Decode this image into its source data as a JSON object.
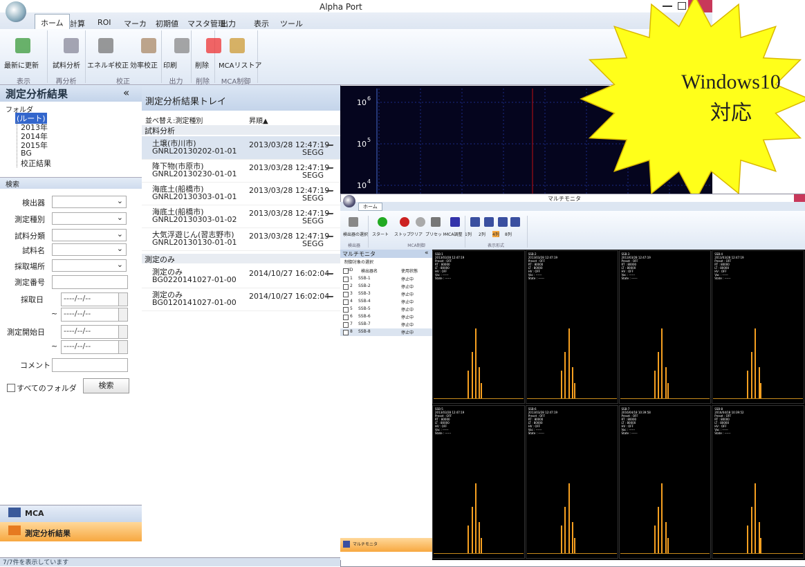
{
  "window": {
    "title": "Alpha Port"
  },
  "ribbon": {
    "tabs": [
      "ホーム",
      "計算",
      "ROI",
      "マーカ",
      "初期値",
      "マスタ管理",
      "出力",
      "表示",
      "ツール"
    ],
    "groups": [
      {
        "label": "表示",
        "buttons": [
          "最新に更新"
        ]
      },
      {
        "label": "再分析",
        "buttons": [
          "試料分析"
        ]
      },
      {
        "label": "校正",
        "buttons": [
          "エネルギ校正",
          "効率校正"
        ]
      },
      {
        "label": "出力",
        "buttons": [
          "印刷"
        ]
      },
      {
        "label": "削除",
        "buttons": [
          "削除"
        ]
      },
      {
        "label": "MCA制御",
        "buttons": [
          "MCAリストア"
        ]
      }
    ]
  },
  "left_panel": {
    "title": "測定分析結果",
    "collapse": "«",
    "folder_label": "フォルダ",
    "tree": [
      "(ルート)",
      "2013年",
      "2014年",
      "2015年",
      "BG",
      "校正結果"
    ],
    "search_title": "検索",
    "fields": [
      "検出器",
      "測定種別",
      "試料分類",
      "試料名",
      "採取場所",
      "測定番号",
      "採取日",
      "測定開始日",
      "コメント"
    ],
    "date_placeholder": "----/--/--",
    "range_sep": "~",
    "all_folders": "すべてのフォルダ",
    "search_button": "検索",
    "nav": [
      "MCA",
      "測定分析結果"
    ]
  },
  "status": "7/7件を表示しています",
  "tray": {
    "title": "測定分析結果トレイ",
    "sort": "並べ替え:測定種別",
    "order": "昇順▲",
    "groups": [
      {
        "name": "試料分析",
        "items": [
          {
            "name": "土壌(市川市)",
            "id": "GNRL20130202-01-01",
            "date": "2013/03/28 12:47:19",
            "detector": "SEGG"
          },
          {
            "name": "降下物(市原市)",
            "id": "GNRL20130230-01-01",
            "date": "2013/03/28 12:47:19",
            "detector": "SEGG"
          },
          {
            "name": "海底土(船橋市)",
            "id": "GNRL20130303-01-01",
            "date": "2013/03/28 12:47:19",
            "detector": "SEGG"
          },
          {
            "name": "海底土(船橋市)",
            "id": "GNRL20130303-01-02",
            "date": "2013/03/28 12:47:19",
            "detector": "SEGG"
          },
          {
            "name": "大気浮遊じん(習志野市)",
            "id": "GNRL20130130-01-01",
            "date": "2013/03/28 12:47:19",
            "detector": "SEGG"
          }
        ]
      },
      {
        "name": "測定のみ",
        "items": [
          {
            "name": "測定のみ",
            "id": "BG0220141027-01-00",
            "date": "2014/10/27 16:02:04"
          },
          {
            "name": "測定のみ",
            "id": "BG0120141027-01-00",
            "date": "2014/10/27 16:02:04"
          }
        ]
      }
    ]
  },
  "spectrum": {
    "yticks": [
      {
        "base": "10",
        "exp": "6"
      },
      {
        "base": "10",
        "exp": "5"
      },
      {
        "base": "10",
        "exp": "4"
      }
    ]
  },
  "badge": {
    "lines": [
      "Windows10",
      "対応"
    ]
  },
  "multi_monitor": {
    "title": "マルチモニタ",
    "tab": "ホーム",
    "buttons": [
      "検出器の選択",
      "スタート",
      "ストップ",
      "クリア",
      "プリセット",
      "MCA調整",
      "1列",
      "2列",
      "4列",
      "8列"
    ],
    "groups": [
      "検出器",
      "MCA制御",
      "表示形式"
    ],
    "panel_title": "マルチモニタ",
    "collapse": "«",
    "select_label": "制御対象の選択",
    "columns": [
      "ID",
      "検出器名",
      "使用状態"
    ],
    "rows": [
      [
        "1",
        "SSB-1",
        "停止中"
      ],
      [
        "2",
        "SSB-2",
        "停止中"
      ],
      [
        "3",
        "SSB-3",
        "停止中"
      ],
      [
        "4",
        "SSB-4",
        "停止中"
      ],
      [
        "5",
        "SSB-5",
        "停止中"
      ],
      [
        "6",
        "SSB-6",
        "停止中"
      ],
      [
        "7",
        "SSB-7",
        "停止中"
      ],
      [
        "8",
        "SSB-8",
        "停止中"
      ]
    ],
    "nav": "マルチモニタ",
    "monitors": [
      {
        "name": "SSB-1",
        "date": "2013/03/28 12:47:19"
      },
      {
        "name": "SSB-2",
        "date": "2013/03/28 12:47:19"
      },
      {
        "name": "SSB-3",
        "date": "2013/03/28 12:47:19"
      },
      {
        "name": "SSB-4",
        "date": "2013/03/28 12:47:19"
      },
      {
        "name": "SSB-5",
        "date": "2013/03/28 12:47:19"
      },
      {
        "name": "SSB-6",
        "date": "2013/03/28 12:47:19"
      },
      {
        "name": "SSB-7",
        "date": "2016/04/18 10:39:58"
      },
      {
        "name": "SSB-8",
        "date": "2016/04/18 10:39:52"
      }
    ],
    "monitor_fields": [
      "Preset : OFF",
      "RT : 80000",
      "LT : 80000",
      "HV : OFF",
      "Vac : ------",
      "State : ------"
    ]
  }
}
